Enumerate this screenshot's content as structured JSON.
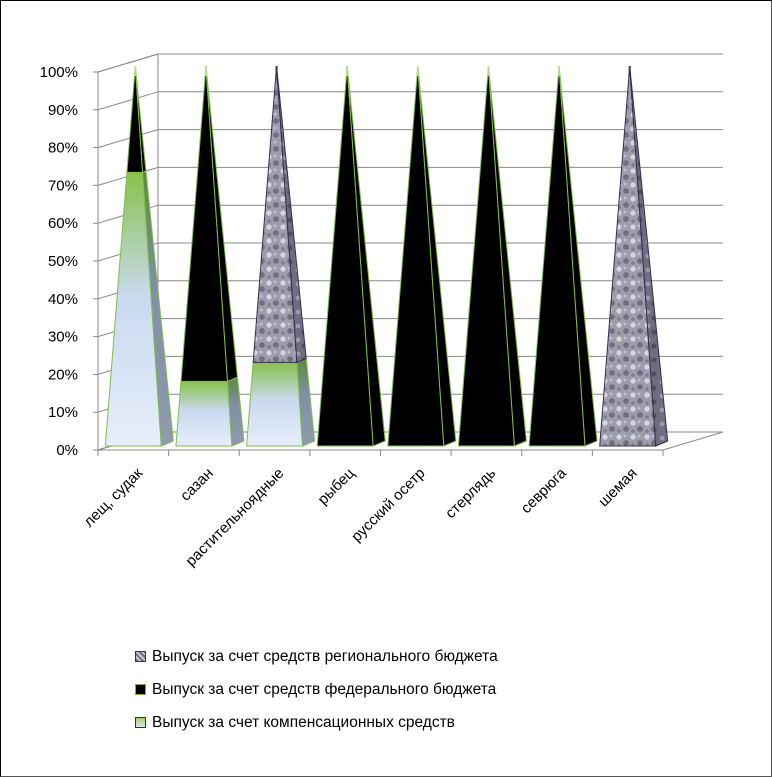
{
  "chart_data": {
    "type": "bar",
    "subtype": "100% stacked 3D pyramid",
    "categories": [
      "лещ, судак",
      "сазан",
      "растительноядные",
      "рыбец",
      "русский осетр",
      "стерлядь",
      "севрюга",
      "шемая"
    ],
    "series": [
      {
        "name": "Выпуск за счет компенсационных средств",
        "color": "#dce6f2",
        "values": [
          72,
          17,
          22,
          0,
          0,
          0,
          0,
          0
        ]
      },
      {
        "name": "Выпуск за счет средств федерального бюджета",
        "color": "#000000",
        "values": [
          28,
          83,
          0,
          100,
          100,
          100,
          100,
          0
        ]
      },
      {
        "name": "Выпуск за счет средств регионального бюджета",
        "color": "#8f8f9e",
        "values": [
          0,
          0,
          78,
          0,
          0,
          0,
          0,
          100
        ]
      }
    ],
    "y_ticks": [
      "0%",
      "10%",
      "20%",
      "30%",
      "40%",
      "50%",
      "60%",
      "70%",
      "80%",
      "90%",
      "100%"
    ],
    "ylim": [
      0,
      100
    ],
    "grid": true,
    "legend_position": "bottom"
  },
  "legend_items": [
    {
      "label": "Выпуск за счет средств регионального бюджета",
      "color": "#8f8f9e"
    },
    {
      "label": "Выпуск за счет средств федерального бюджета",
      "color": "#000000"
    },
    {
      "label": "Выпуск за счет компенсационных средств",
      "color": "#dce6f2"
    }
  ]
}
